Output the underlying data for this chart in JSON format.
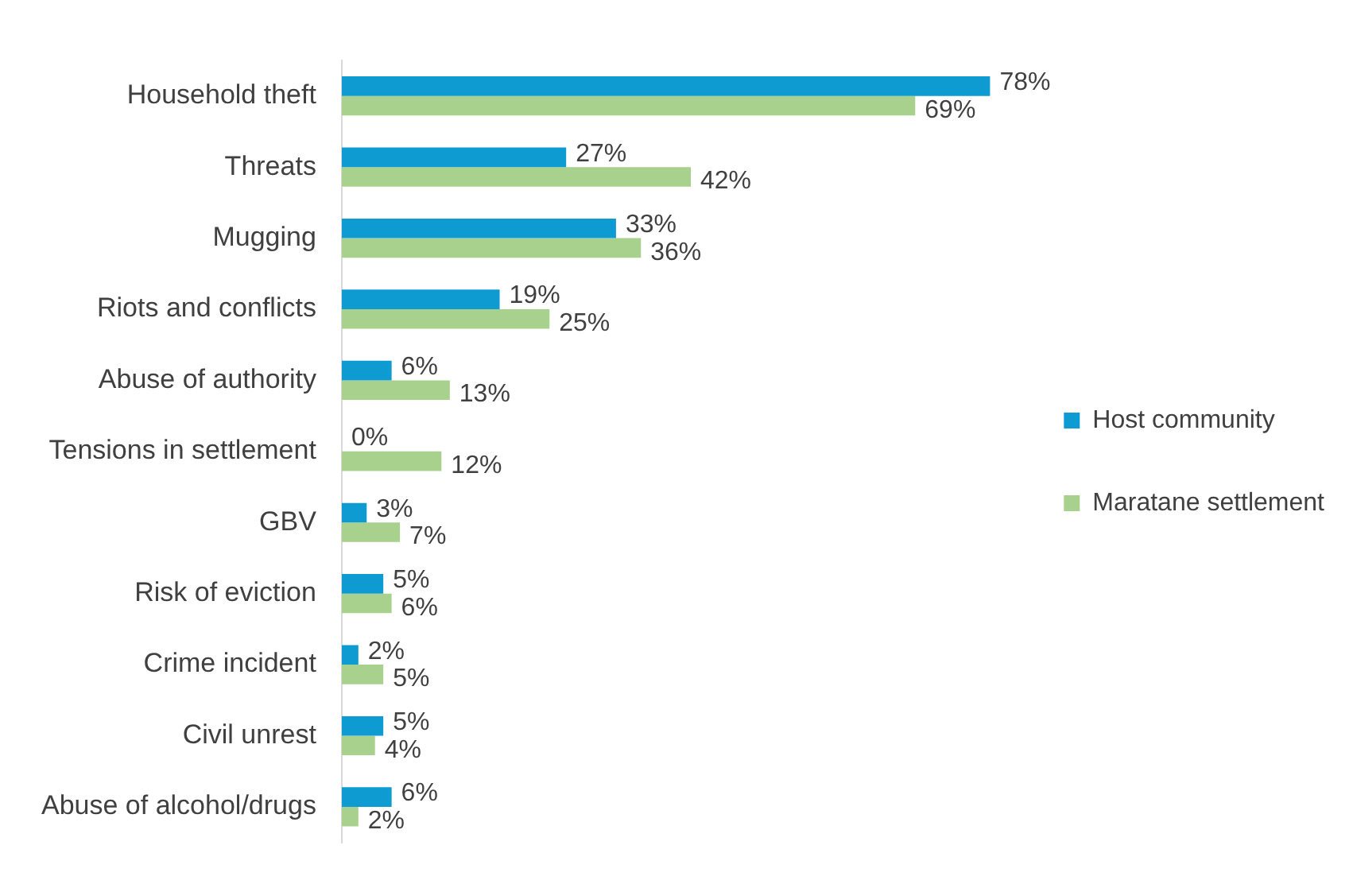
{
  "chart_data": {
    "type": "bar",
    "orientation": "horizontal",
    "categories": [
      "Household theft",
      "Threats",
      "Mugging",
      "Riots and conflicts",
      "Abuse of authority",
      "Tensions in settlement",
      "GBV",
      "Risk of eviction",
      "Crime incident",
      "Civil unrest",
      "Abuse of alcohol/drugs"
    ],
    "series": [
      {
        "name": "Host community",
        "color": "#0e9bd2",
        "values": [
          78,
          27,
          33,
          19,
          6,
          0,
          3,
          5,
          2,
          5,
          6
        ],
        "value_labels": [
          "78%",
          "27%",
          "33%",
          "19%",
          "6%",
          "0%",
          "3%",
          "5%",
          "2%",
          "5%",
          "6%"
        ]
      },
      {
        "name": "Maratane settlement",
        "color": "#a9d18e",
        "values": [
          69,
          42,
          36,
          25,
          13,
          12,
          7,
          6,
          5,
          4,
          2
        ],
        "value_labels": [
          "69%",
          "42%",
          "36%",
          "25%",
          "13%",
          "12%",
          "7%",
          "6%",
          "5%",
          "4%",
          "2%"
        ]
      }
    ],
    "tick_labels": "y",
    "legend": "right"
  }
}
